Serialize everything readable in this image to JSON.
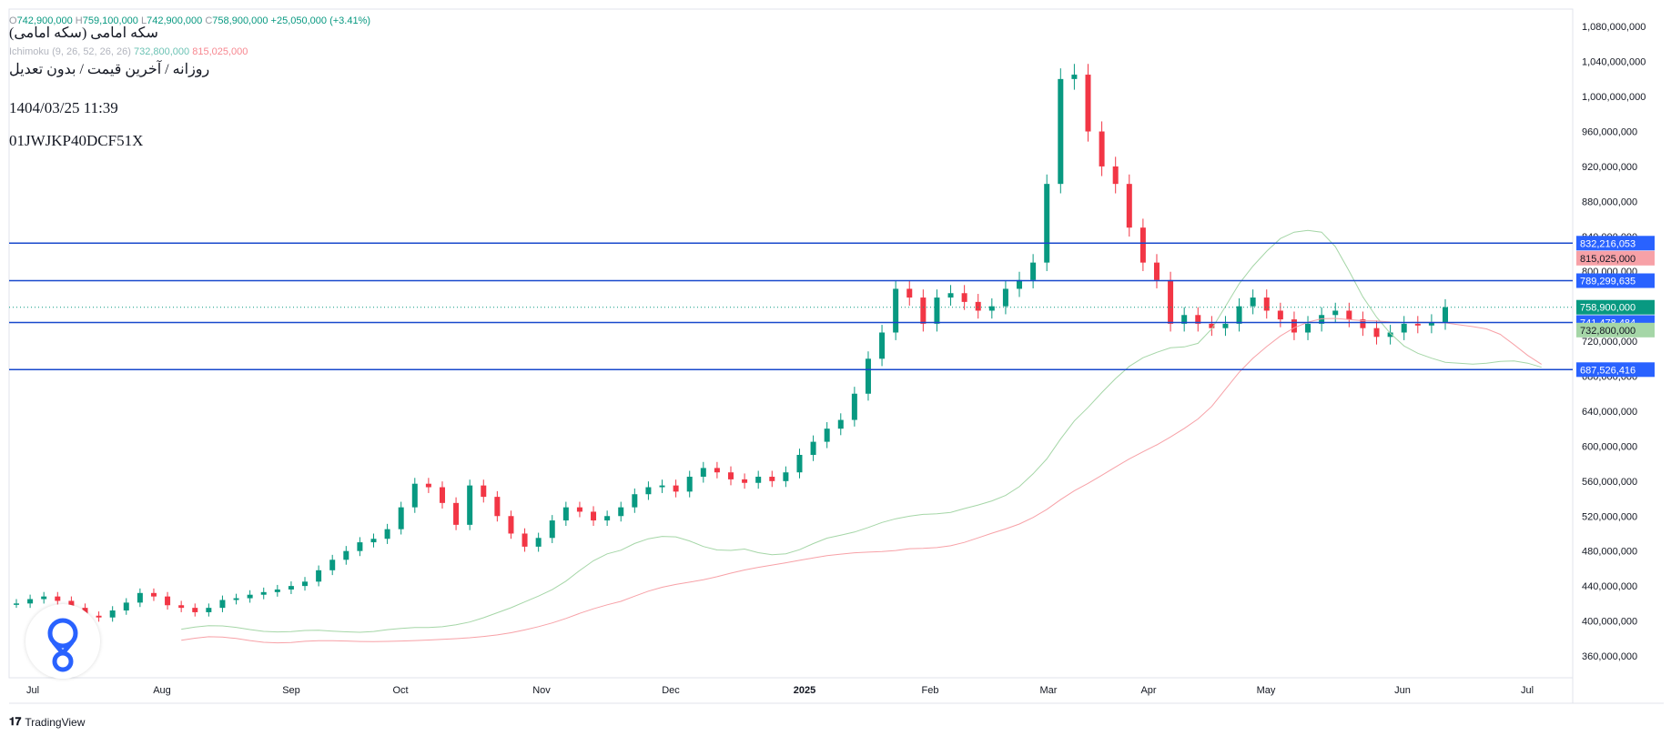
{
  "header": {
    "ohlc_open_label": "O",
    "ohlc_open": "742,900,000",
    "ohlc_high_label": "H",
    "ohlc_high": "759,100,000",
    "ohlc_low_label": "L",
    "ohlc_low": "742,900,000",
    "ohlc_close_label": "C",
    "ohlc_close": "758,900,000",
    "ohlc_change": "+25,050,000 (+3.41%)",
    "symbol_title": "سکه امامی (سکه امامی)",
    "subtitle": "روزانه / آخرین قیمت / بدون تعدیل",
    "datetime": "1404/03/25 11:39",
    "chart_id": "01JWJKP40DCF51X",
    "ichimoku_label": "Ichimoku (9, 26, 52, 26, 26)",
    "ichimoku_value_a": "732,800,000",
    "ichimoku_value_b": "815,025,000"
  },
  "branding": {
    "name": "TradingView"
  },
  "chart_data": {
    "type": "candlestick",
    "title": "سکه امامی (سکه امامی)",
    "interval": "Daily",
    "x_labels": [
      "Jul",
      "Aug",
      "Sep",
      "Oct",
      "Nov",
      "Dec",
      "2025",
      "Feb",
      "Mar",
      "Apr",
      "May",
      "Jun",
      "Jul"
    ],
    "y_ticks": [
      360000000,
      400000000,
      440000000,
      480000000,
      520000000,
      560000000,
      600000000,
      640000000,
      680000000,
      720000000,
      760000000,
      800000000,
      840000000,
      880000000,
      920000000,
      960000000,
      1000000000,
      1040000000,
      1080000000
    ],
    "y_tick_labels": [
      "360,000,000",
      "400,000,000",
      "440,000,000",
      "480,000,000",
      "520,000,000",
      "560,000,000",
      "600,000,000",
      "640,000,000",
      "680,000,000",
      "720,000,000",
      "760,000,000",
      "800,000,000",
      "840,000,000",
      "880,000,000",
      "920,000,000",
      "960,000,000",
      "1,000,000,000",
      "1,040,000,000",
      "1,080,000,000"
    ],
    "ylim": [
      335000000,
      1100000000
    ],
    "horizontal_levels": [
      {
        "value": 832216053,
        "label": "832,216,053"
      },
      {
        "value": 789299635,
        "label": "789,299,635"
      },
      {
        "value": 741478484,
        "label": "741,478,484"
      },
      {
        "value": 687526416,
        "label": "687,526,416"
      }
    ],
    "price_tags": [
      {
        "value": 815025000,
        "label": "815,025,000",
        "color": "#f7a1a7",
        "text_color": "#131722"
      },
      {
        "value": 758900000,
        "label": "758,900,000",
        "color": "#089981",
        "text_color": "#ffffff"
      },
      {
        "value": 732800000,
        "label": "732,800,000",
        "color": "#a5d6a7",
        "text_color": "#131722"
      }
    ],
    "last_price": 758900000,
    "close_series": [
      420,
      425,
      428,
      423,
      415,
      406,
      404,
      412,
      421,
      432,
      428,
      418,
      415,
      410,
      415,
      424,
      426,
      430,
      433,
      436,
      440,
      445,
      458,
      470,
      480,
      490,
      494,
      505,
      530,
      557,
      553,
      535,
      510,
      555,
      542,
      520,
      500,
      485,
      495,
      515,
      530,
      525,
      515,
      520,
      530,
      545,
      553,
      555,
      548,
      565,
      575,
      570,
      562,
      558,
      565,
      560,
      570,
      590,
      605,
      620,
      630,
      660,
      700,
      730,
      780,
      770,
      740,
      770,
      775,
      765,
      755,
      760,
      780,
      790,
      810,
      900,
      1020,
      1025,
      960,
      920,
      900,
      850,
      810,
      790,
      740,
      750,
      740,
      735,
      740,
      760,
      770,
      755,
      745,
      730,
      740,
      750,
      755,
      745,
      735,
      725,
      730,
      740,
      738,
      742,
      759
    ],
    "colors": {
      "up": "#089981",
      "down": "#f23645",
      "level_line": "#1848cc",
      "level_tag": "#2962ff",
      "cloud_bull": "#a5d6a7",
      "cloud_bear": "#f7a1a7"
    }
  }
}
